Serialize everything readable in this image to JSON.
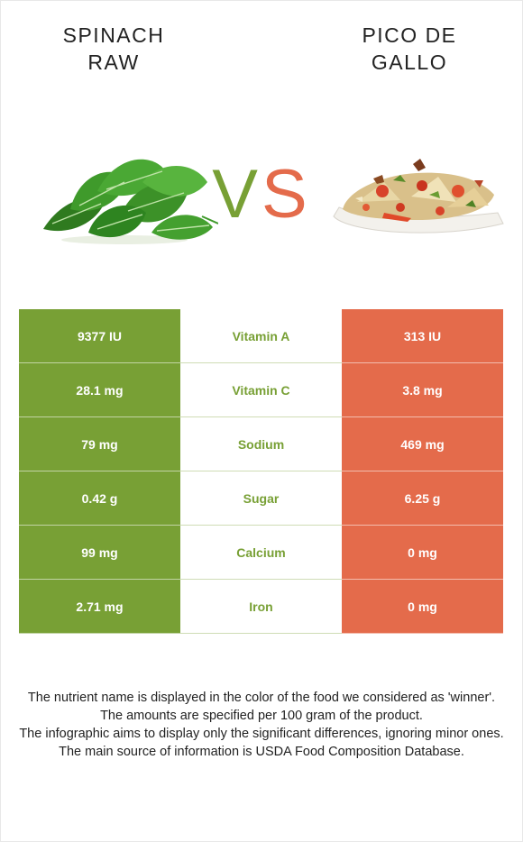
{
  "foods": {
    "left": {
      "name_line1": "SPINACH",
      "name_line2": "RAW",
      "color": "#78a035",
      "image_icon": "spinach-leaves-image"
    },
    "right": {
      "name_line1": "PICO DE",
      "name_line2": "GALLO",
      "color": "#e46b4b",
      "image_icon": "pico-de-gallo-plate-image"
    }
  },
  "vs": {
    "v": "V",
    "s": "S"
  },
  "nutrients": [
    {
      "name": "Vitamin A",
      "left": "9377 IU",
      "right": "313 IU"
    },
    {
      "name": "Vitamin C",
      "left": "28.1 mg",
      "right": "3.8 mg"
    },
    {
      "name": "Sodium",
      "left": "79 mg",
      "right": "469 mg"
    },
    {
      "name": "Sugar",
      "left": "0.42 g",
      "right": "6.25 g"
    },
    {
      "name": "Calcium",
      "left": "99 mg",
      "right": "0 mg"
    },
    {
      "name": "Iron",
      "left": "2.71 mg",
      "right": "0 mg"
    }
  ],
  "footnotes": [
    "The nutrient name is displayed in the color of the food we considered as 'winner'.",
    "The amounts are specified per 100 gram of the product.",
    "The infographic aims to display only the significant differences, ignoring minor ones.",
    "The main source of information is USDA Food Composition Database."
  ]
}
